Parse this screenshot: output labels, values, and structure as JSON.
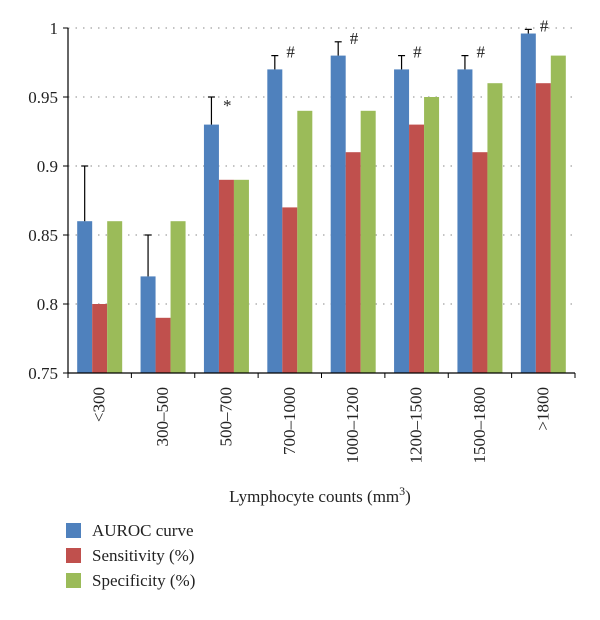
{
  "chart_data": {
    "type": "bar",
    "categories": [
      "<300",
      "300–500",
      "500–700",
      "700–1000",
      "1000–1200",
      "1200–1500",
      "1500–1800",
      ">1800"
    ],
    "series": [
      {
        "name": "AUROC curve",
        "color": "#4F81BD",
        "values": [
          0.86,
          0.82,
          0.93,
          0.97,
          0.98,
          0.97,
          0.97,
          0.996
        ],
        "error_upper": [
          0.9,
          0.85,
          0.95,
          0.98,
          0.99,
          0.98,
          0.98,
          0.999
        ]
      },
      {
        "name": "Sensitivity (%)",
        "color": "#C0504D",
        "values": [
          0.8,
          0.79,
          0.89,
          0.87,
          0.91,
          0.93,
          0.91,
          0.96
        ]
      },
      {
        "name": "Specificity (%)",
        "color": "#9BBB59",
        "values": [
          0.86,
          0.86,
          0.89,
          0.94,
          0.94,
          0.95,
          0.96,
          0.98
        ]
      }
    ],
    "significance_marks": [
      "",
      "",
      "*",
      "#",
      "#",
      "#",
      "#",
      "#"
    ],
    "xlabel": "Lymphocyte counts (mm",
    "xlabel_superscript": "3",
    "xlabel_suffix": ")",
    "ylabel": "",
    "ylim": [
      0.75,
      1.0
    ],
    "yticks": [
      0.75,
      0.8,
      0.85,
      0.9,
      0.95,
      1.0
    ],
    "ytick_labels": [
      "0.75",
      "0.8",
      "0.85",
      "0.9",
      "0.95",
      "1"
    ],
    "grid": "horizontal dotted",
    "legend_position": "bottom-left"
  }
}
